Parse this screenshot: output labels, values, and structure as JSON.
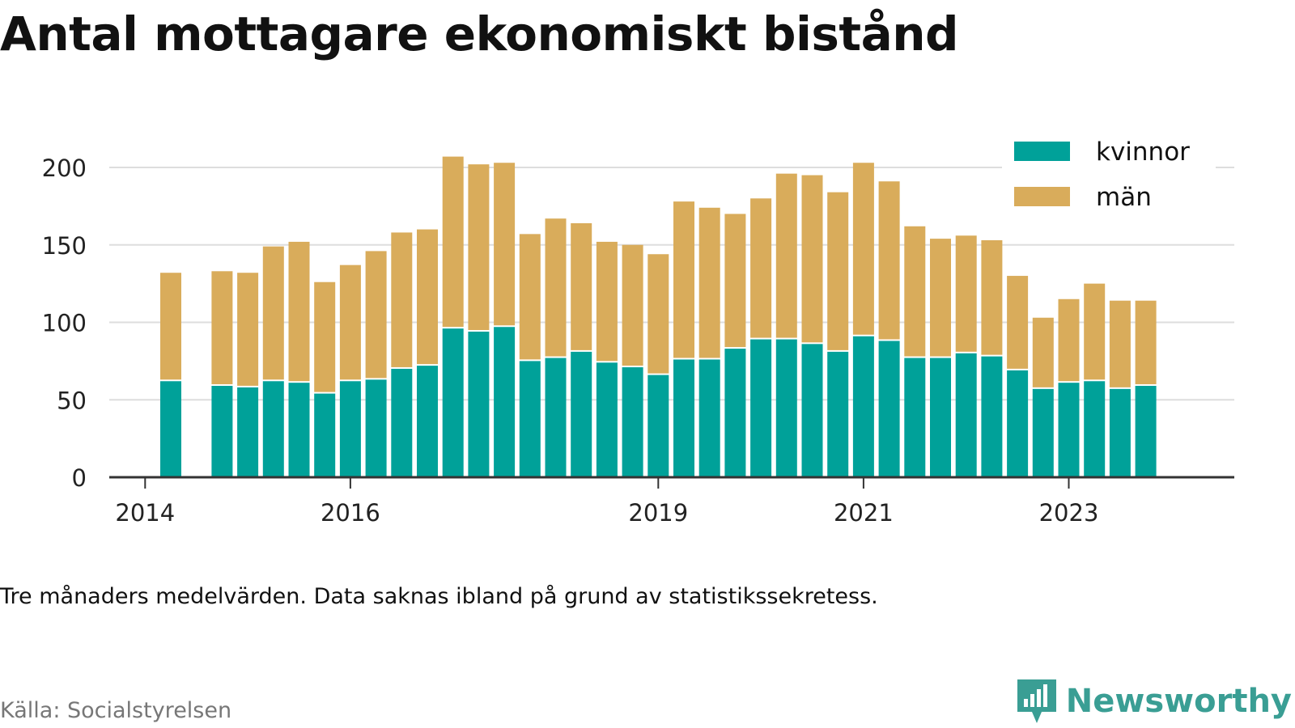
{
  "title": "Antal mottagare ekonomiskt bistånd",
  "caption": "Tre månaders medelvärden. Data saknas ibland på grund av statistikssekretess.",
  "source": "Källa: Socialstyrelsen",
  "brand": {
    "name": "Newsworthy",
    "icon": "newsworthy-logo-icon",
    "color": "#3a9e94"
  },
  "colors": {
    "kvinnor": "#00a199",
    "man": "#d9ac5b",
    "grid": "#dddddd",
    "axis": "#333333"
  },
  "chart_data": {
    "type": "bar",
    "stacked": true,
    "ylim": [
      0,
      220
    ],
    "yticks": [
      0,
      50,
      100,
      150,
      200
    ],
    "xticks": [
      {
        "label": "2014",
        "index": 0
      },
      {
        "label": "2016",
        "index": 8
      },
      {
        "label": "2019",
        "index": 20
      },
      {
        "label": "2021",
        "index": 28
      },
      {
        "label": "2023",
        "index": 36
      }
    ],
    "legend_position": "top-right",
    "x": [
      "2014 Q1",
      "2014 Q2",
      "2014 Q3",
      "2014 Q4",
      "2015 Q1",
      "2015 Q2",
      "2015 Q3",
      "2015 Q4",
      "2016 Q1",
      "2016 Q2",
      "2016 Q3",
      "2016 Q4",
      "2017 Q1",
      "2017 Q2",
      "2017 Q3",
      "2017 Q4",
      "2018 Q1",
      "2018 Q2",
      "2018 Q3",
      "2018 Q4",
      "2019 Q1",
      "2019 Q2",
      "2019 Q3",
      "2019 Q4",
      "2020 Q1",
      "2020 Q2",
      "2020 Q3",
      "2020 Q4",
      "2021 Q1",
      "2021 Q2",
      "2021 Q3",
      "2021 Q4",
      "2022 Q1",
      "2022 Q2",
      "2022 Q3",
      "2022 Q4",
      "2023 Q1",
      "2023 Q2",
      "2023 Q3",
      "2023 Q4"
    ],
    "series": [
      {
        "name": "kvinnor",
        "values": [
          null,
          62,
          null,
          59,
          58,
          62,
          61,
          54,
          62,
          63,
          70,
          72,
          96,
          94,
          97,
          75,
          77,
          81,
          74,
          71,
          66,
          76,
          76,
          83,
          89,
          89,
          86,
          81,
          91,
          88,
          77,
          77,
          80,
          78,
          69,
          57,
          61,
          62,
          57,
          59
        ]
      },
      {
        "name": "män",
        "values": [
          null,
          70,
          null,
          74,
          74,
          87,
          91,
          72,
          75,
          83,
          88,
          88,
          111,
          108,
          106,
          82,
          90,
          83,
          78,
          79,
          78,
          102,
          98,
          87,
          91,
          107,
          109,
          103,
          112,
          103,
          85,
          77,
          76,
          75,
          61,
          46,
          54,
          63,
          57,
          55
        ]
      }
    ]
  }
}
